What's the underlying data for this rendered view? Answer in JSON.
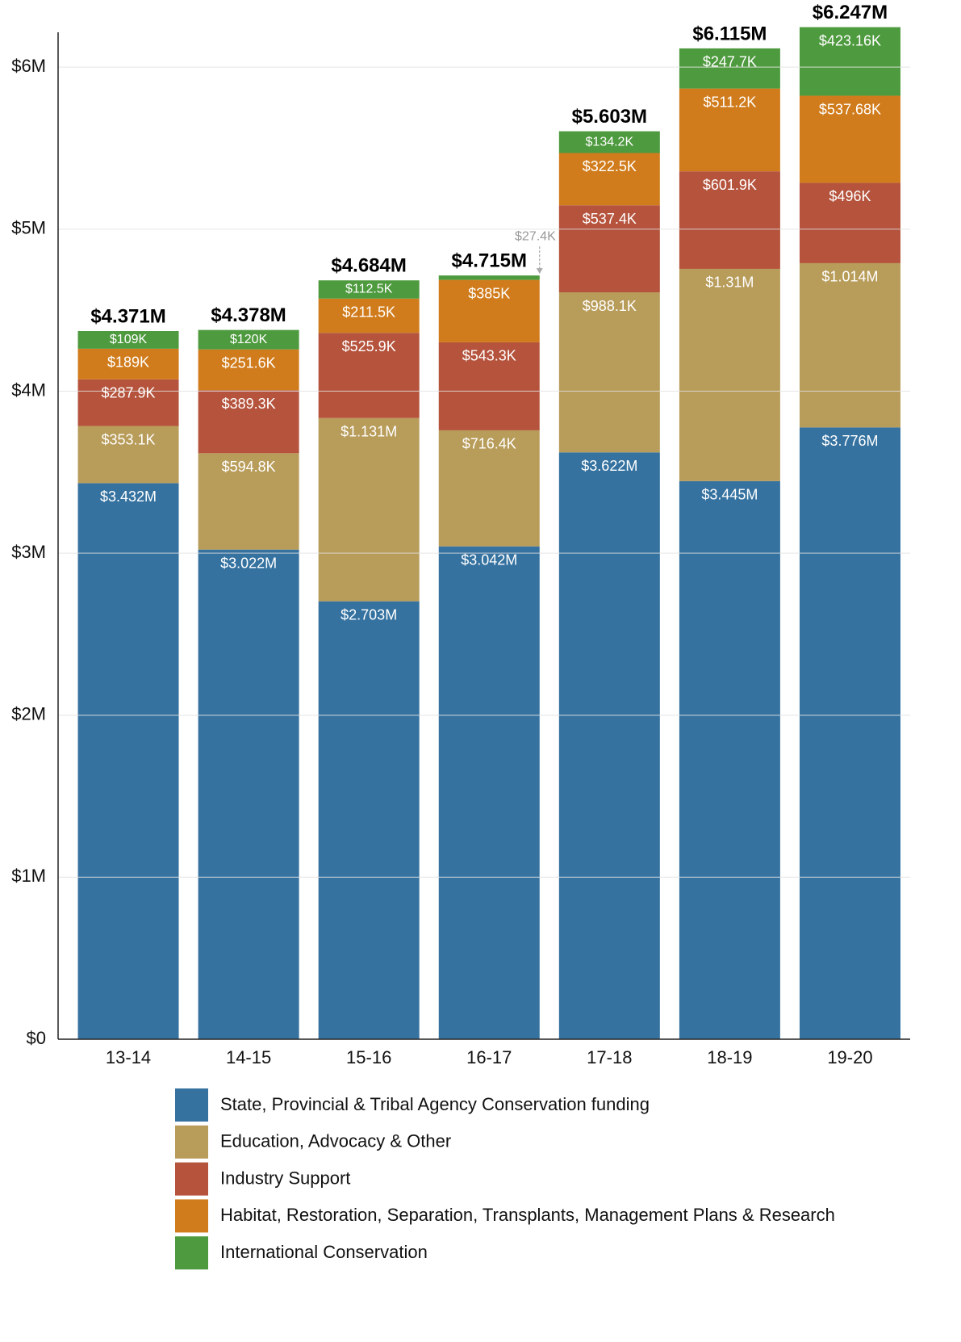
{
  "chart_data": {
    "type": "stacked-bar",
    "categories": [
      "13-14",
      "14-15",
      "15-16",
      "16-17",
      "17-18",
      "18-19",
      "19-20"
    ],
    "series": [
      {
        "name": "State, Provincial & Tribal Agency Conservation funding",
        "color": "#3572a0",
        "values": [
          3432000,
          3022000,
          2703000,
          3042000,
          3622000,
          3445000,
          3776000
        ],
        "value_labels": [
          "$3.432M",
          "$3.022M",
          "$2.703M",
          "$3.042M",
          "$3.622M",
          "$3.445M",
          "$3.776M"
        ]
      },
      {
        "name": "Education, Advocacy & Other",
        "color": "#b89c5a",
        "values": [
          353100,
          594800,
          1131000,
          716400,
          988100,
          1310000,
          1014000
        ],
        "value_labels": [
          "$353.1K",
          "$594.8K",
          "$1.131M",
          "$716.4K",
          "$988.1K",
          "$1.31M",
          "$1.014M"
        ]
      },
      {
        "name": "Industry Support",
        "color": "#b5533c",
        "values": [
          287900,
          389300,
          525900,
          543300,
          537400,
          601900,
          496000
        ],
        "value_labels": [
          "$287.9K",
          "$389.3K",
          "$525.9K",
          "$543.3K",
          "$537.4K",
          "$601.9K",
          "$496K"
        ]
      },
      {
        "name": "Habitat, Restoration, Separation, Transplants, Management Plans & Research",
        "color": "#d17c1c",
        "values": [
          189000,
          251600,
          211500,
          385000,
          322500,
          511200,
          537680
        ],
        "value_labels": [
          "$189K",
          "$251.6K",
          "$211.5K",
          "$385K",
          "$322.5K",
          "$511.2K",
          "$537.68K"
        ]
      },
      {
        "name": "International Conservation",
        "color": "#4e9a3e",
        "values": [
          109000,
          120000,
          112500,
          27400,
          134200,
          247700,
          423160
        ],
        "value_labels": [
          "$109K",
          "$120K",
          "$112.5K",
          "$27.4K",
          "$134.2K",
          "$247.7K",
          "$423.16K"
        ]
      }
    ],
    "totals": {
      "values": [
        4371000,
        4378000,
        4684000,
        4715000,
        5603000,
        6115000,
        6247000
      ],
      "value_labels": [
        "$4.371M",
        "$4.378M",
        "$4.684M",
        "$4.715M",
        "$5.603M",
        "$6.115M",
        "$6.247M"
      ]
    },
    "ylim": [
      0,
      6250000
    ],
    "yticks": [
      {
        "value": 0,
        "label": "$0"
      },
      {
        "value": 1000000,
        "label": "$1M"
      },
      {
        "value": 2000000,
        "label": "$2M"
      },
      {
        "value": 3000000,
        "label": "$3M"
      },
      {
        "value": 4000000,
        "label": "$4M"
      },
      {
        "value": 5000000,
        "label": "$5M"
      },
      {
        "value": 6000000,
        "label": "$6M"
      }
    ],
    "grid": true
  }
}
